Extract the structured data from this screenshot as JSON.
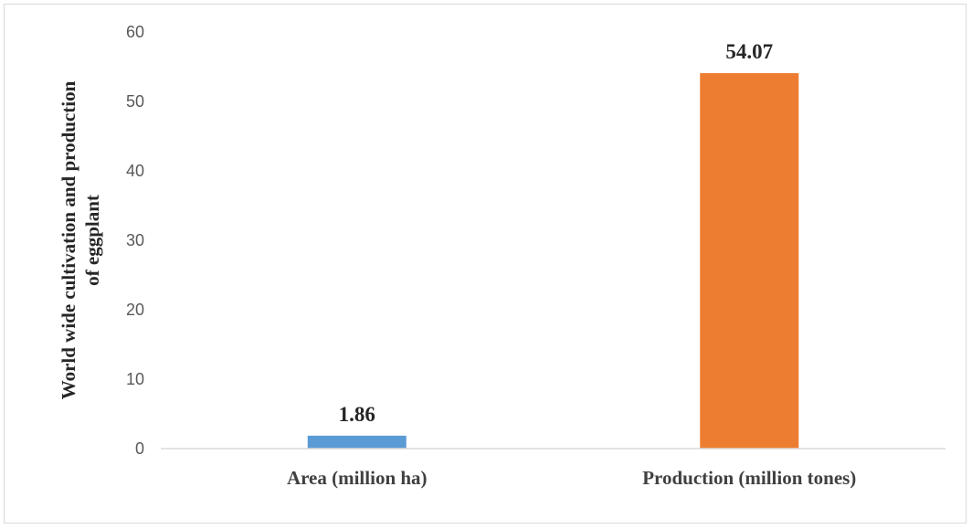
{
  "chart_data": {
    "type": "bar",
    "title": "",
    "xlabel": "",
    "ylabel_lines": [
      "World wide cultivation and production",
      "of eggplant"
    ],
    "categories": [
      "Area (million ha)",
      "Production (million tones)"
    ],
    "values": [
      1.86,
      54.07
    ],
    "data_labels": [
      "1.86",
      "54.07"
    ],
    "bar_colors": [
      "#5b9bd5",
      "#ed7d31"
    ],
    "ylim": [
      0,
      60
    ],
    "yticks": [
      0,
      10,
      20,
      30,
      40,
      50,
      60
    ],
    "grid": false,
    "legend": "none"
  }
}
